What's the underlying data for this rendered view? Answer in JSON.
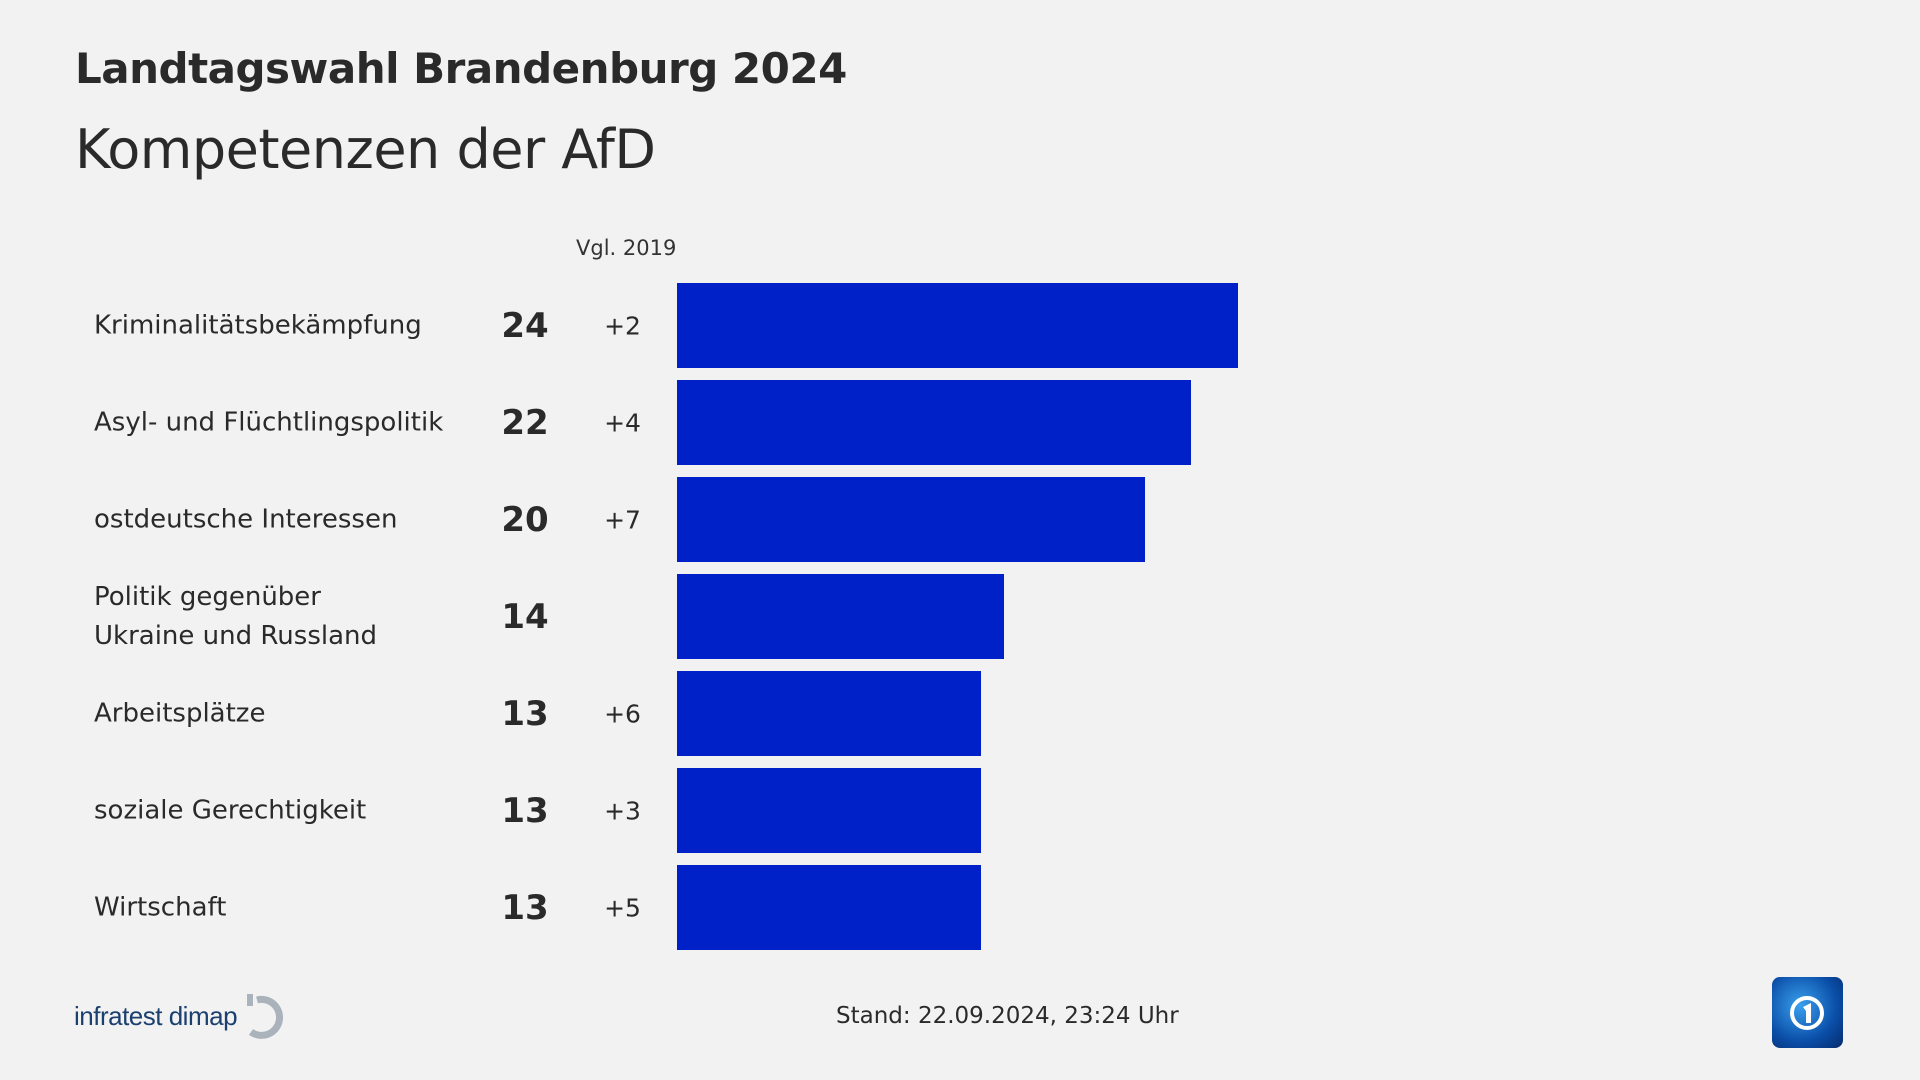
{
  "header": {
    "title": "Landtagswahl Brandenburg 2024",
    "subtitle": "Kompetenzen der AfD"
  },
  "chart_data": {
    "type": "bar",
    "orientation": "horizontal",
    "compare_label": "Vgl. 2019",
    "categories": [
      "Kriminalitätsbekämpfung",
      "Asyl- und Flüchtlingspolitik",
      "ostdeutsche Interessen",
      "Politik gegenüber\nUkraine und Russland",
      "Arbeitsplätze",
      "soziale Gerechtigkeit",
      "Wirtschaft"
    ],
    "values": [
      24,
      22,
      20,
      14,
      13,
      13,
      13
    ],
    "changes": [
      "+2",
      "+4",
      "+7",
      "",
      "+6",
      "+3",
      "+5"
    ],
    "bar_color": "#0020c8",
    "xlim": [
      0,
      24
    ]
  },
  "footer": {
    "source_logo": "infratest dimap",
    "stand": "Stand:  22.09.2024, 23:24 Uhr",
    "broadcaster_logo": "ARD"
  }
}
